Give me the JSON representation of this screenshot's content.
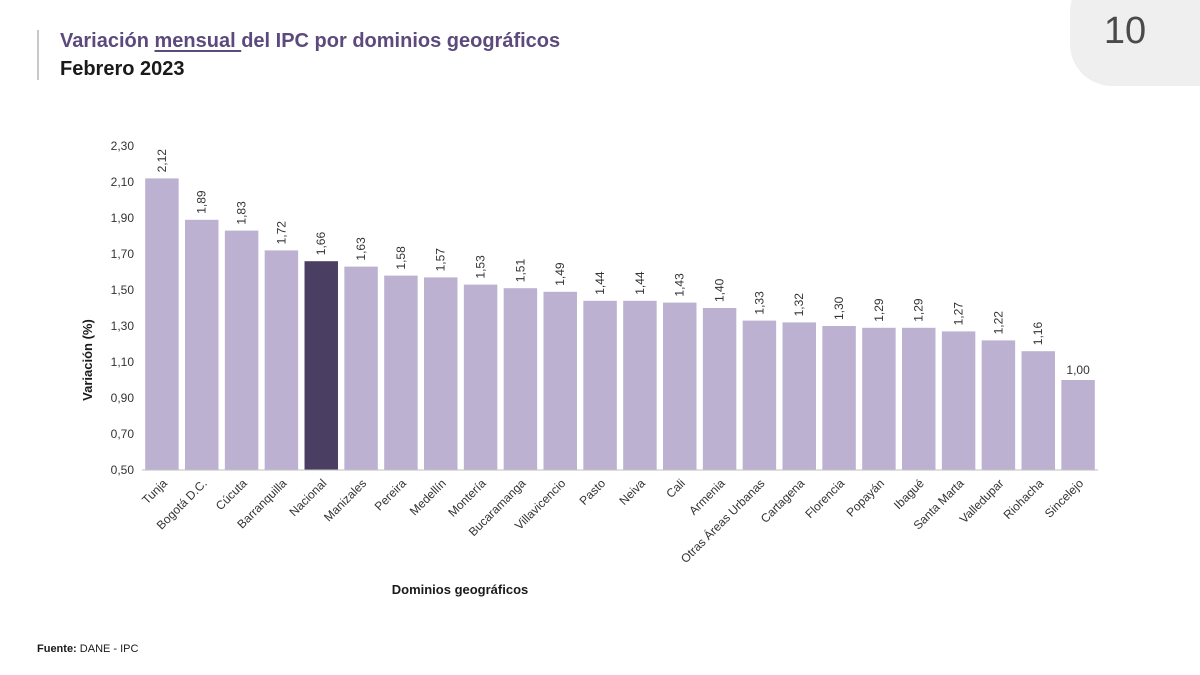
{
  "header": {
    "title_part1": "Variación ",
    "title_underlined": "mensual ",
    "title_part2": "del IPC por dominios geográficos",
    "subtitle": "Febrero 2023"
  },
  "page": {
    "number": "10"
  },
  "source": {
    "label": "Fuente:",
    "text": " DANE - IPC"
  },
  "colors": {
    "bar": "#bcb1d0",
    "highlight": "#4a3f63",
    "title": "#5c4a7d",
    "axis": "#bfbfbf"
  },
  "chart_data": {
    "type": "bar",
    "xlabel": "Dominios geográficos",
    "ylabel": "Variación (%)",
    "ylim": [
      0.5,
      2.3
    ],
    "yticks": [
      "0,50",
      "0,70",
      "0,90",
      "1,10",
      "1,30",
      "1,50",
      "1,70",
      "1,90",
      "2,10",
      "2,30"
    ],
    "grid": false,
    "highlight_category": "Nacional",
    "categories": [
      "Tunja",
      "Bogotá D.C.",
      "Cúcuta",
      "Barranquilla",
      "Nacional",
      "Manizales",
      "Pereira",
      "Medellín",
      "Montería",
      "Bucaramanga",
      "Villavicencio",
      "Pasto",
      "Neiva",
      "Cali",
      "Armenia",
      "Otras Áreas Urbanas",
      "Cartagena",
      "Florencia",
      "Popayán",
      "Ibagué",
      "Santa Marta",
      "Valledupar",
      "Riohacha",
      "Sincelejo"
    ],
    "values": [
      2.12,
      1.89,
      1.83,
      1.72,
      1.66,
      1.63,
      1.58,
      1.57,
      1.53,
      1.51,
      1.49,
      1.44,
      1.44,
      1.43,
      1.4,
      1.33,
      1.32,
      1.3,
      1.29,
      1.29,
      1.27,
      1.22,
      1.16,
      1.0
    ],
    "labels": [
      "2,12",
      "1,89",
      "1,83",
      "1,72",
      "1,66",
      "1,63",
      "1,58",
      "1,57",
      "1,53",
      "1,51",
      "1,49",
      "1,44",
      "1,44",
      "1,43",
      "1,40",
      "1,33",
      "1,32",
      "1,30",
      "1,29",
      "1,29",
      "1,27",
      "1,22",
      "1,16",
      "1,00"
    ]
  }
}
